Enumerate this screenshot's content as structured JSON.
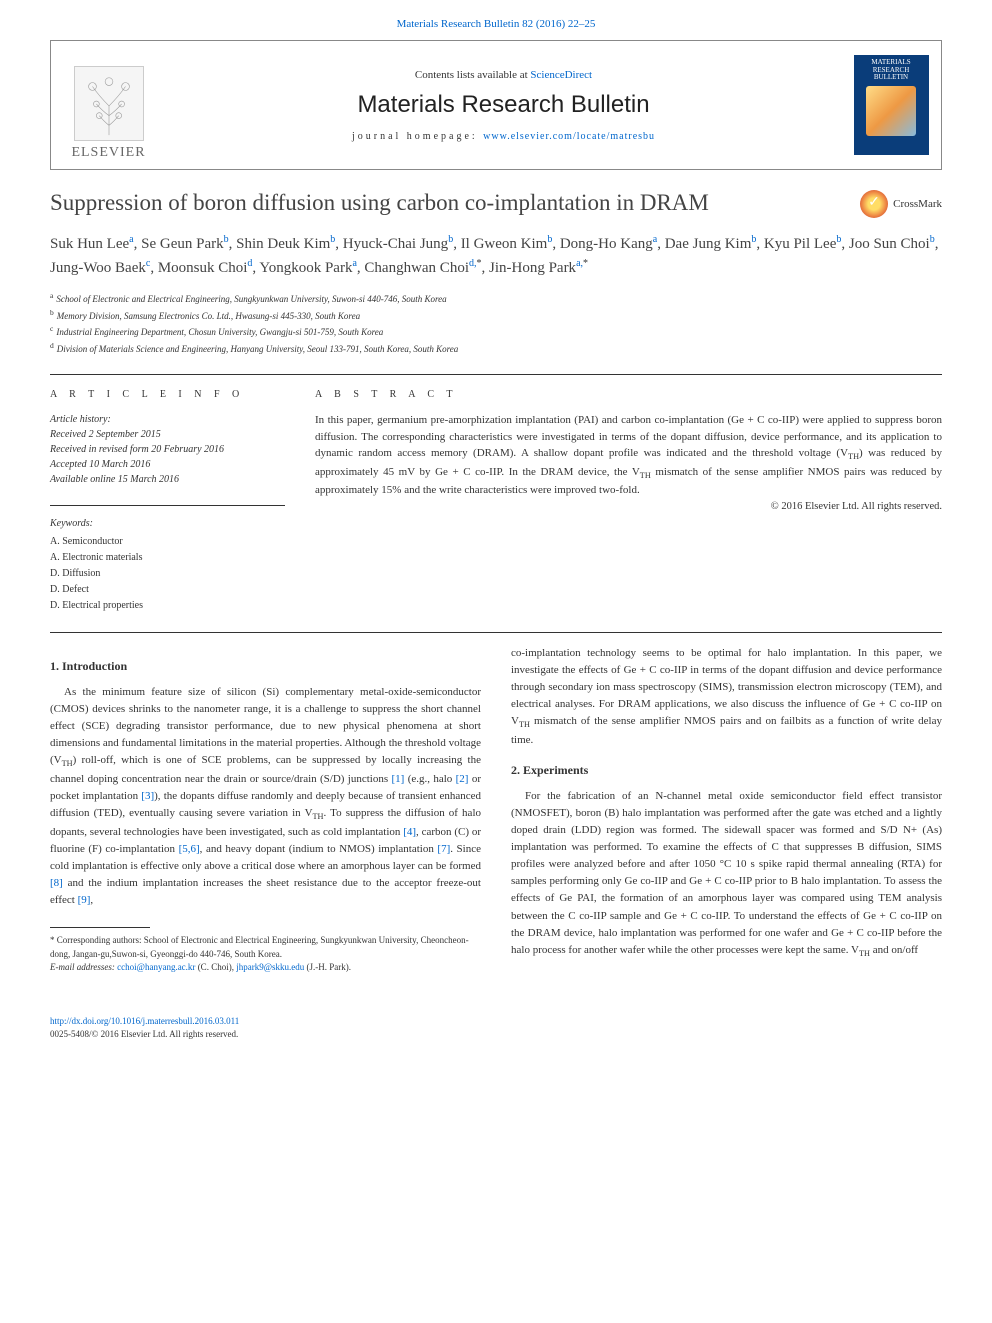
{
  "topLink": {
    "journalCitation": "Materials Research Bulletin 82 (2016) 22–25"
  },
  "headerBox": {
    "publisherName": "ELSEVIER",
    "contentsPrefix": "Contents lists available at ",
    "contentsLinkText": "ScienceDirect",
    "journalName": "Materials Research Bulletin",
    "homepagePrefix": "journal homepage: ",
    "homepageUrl": "www.elsevier.com/locate/matresbu",
    "coverTitle": "MATERIALS RESEARCH BULLETIN"
  },
  "crossmark": {
    "label": "CrossMark"
  },
  "title": "Suppression of boron diffusion using carbon co-implantation in DRAM",
  "authors": [
    {
      "name": "Suk Hun Lee",
      "aff": "a"
    },
    {
      "name": "Se Geun Park",
      "aff": "b"
    },
    {
      "name": "Shin Deuk Kim",
      "aff": "b"
    },
    {
      "name": "Hyuck-Chai Jung",
      "aff": "b"
    },
    {
      "name": "Il Gweon Kim",
      "aff": "b"
    },
    {
      "name": "Dong-Ho Kang",
      "aff": "a"
    },
    {
      "name": "Dae Jung Kim",
      "aff": "b"
    },
    {
      "name": "Kyu Pil Lee",
      "aff": "b"
    },
    {
      "name": "Joo Sun Choi",
      "aff": "b"
    },
    {
      "name": "Jung-Woo Baek",
      "aff": "c"
    },
    {
      "name": "Moonsuk Choi",
      "aff": "d"
    },
    {
      "name": "Yongkook Park",
      "aff": "a"
    },
    {
      "name": "Changhwan Choi",
      "aff": "d",
      "corr": true
    },
    {
      "name": "Jin-Hong Park",
      "aff": "a",
      "corr": true
    }
  ],
  "affiliations": [
    {
      "key": "a",
      "text": "School of Electronic and Electrical Engineering, Sungkyunkwan University, Suwon-si 440-746, South Korea"
    },
    {
      "key": "b",
      "text": "Memory Division, Samsung Electronics Co. Ltd., Hwasung-si 445-330, South Korea"
    },
    {
      "key": "c",
      "text": "Industrial Engineering Department, Chosun University, Gwangju-si 501-759, South Korea"
    },
    {
      "key": "d",
      "text": "Division of Materials Science and Engineering, Hanyang University, Seoul 133-791, South Korea, South Korea"
    }
  ],
  "sectionLabels": {
    "articleInfo": "A R T I C L E  I N F O",
    "abstract": "A B S T R A C T"
  },
  "history": {
    "label": "Article history:",
    "received": "Received 2 September 2015",
    "revised": "Received in revised form 20 February 2016",
    "accepted": "Accepted 10 March 2016",
    "online": "Available online 15 March 2016"
  },
  "keywords": {
    "label": "Keywords:",
    "items": [
      "A. Semiconductor",
      "A. Electronic materials",
      "D. Diffusion",
      "D. Defect",
      "D. Electrical properties"
    ]
  },
  "abstract": {
    "text": "In this paper, germanium pre-amorphization implantation (PAI) and carbon co-implantation (Ge + C co-IIP) were applied to suppress boron diffusion. The corresponding characteristics were investigated in terms of the dopant diffusion, device performance, and its application to dynamic random access memory (DRAM). A shallow dopant profile was indicated and the threshold voltage (V_TH) was reduced by approximately 45 mV by Ge + C co-IIP. In the DRAM device, the V_TH mismatch of the sense amplifier NMOS pairs was reduced by approximately 15% and the write characteristics were improved two-fold.",
    "copyright": "© 2016 Elsevier Ltd. All rights reserved."
  },
  "body": {
    "intro": {
      "heading": "1. Introduction",
      "p1a": "As the minimum feature size of silicon (Si) complementary metal-oxide-semiconductor (CMOS) devices shrinks to the nanometer range, it is a challenge to suppress the short channel effect (SCE) degrading transistor performance, due to new physical phenomena at short dimensions and fundamental limitations in the material properties. Although the threshold voltage (V",
      "p1b": ") roll-off, which is one of SCE problems, can be suppressed by locally increasing the channel doping concentration near the drain or source/drain (S/D) junctions ",
      "p1c": " (e.g., halo ",
      "p1d": " or pocket implantation ",
      "p1e": "), the dopants diffuse randomly and deeply because of transient enhanced diffusion (TED), eventually causing severe variation in V",
      "p1f": ". To suppress the diffusion of halo dopants, several technologies have been investigated, such as cold implantation ",
      "p1g": ", carbon (C) or fluorine (F) co-implantation ",
      "p1h": ", and heavy dopant (indium to NMOS) implantation ",
      "p1i": ". Since cold implantation is effective only above a critical dose where an amorphous layer can be formed ",
      "p1j": " and the indium implantation increases the sheet resistance due to the acceptor freeze-out effect ",
      "p1k": ",",
      "p2a": "co-implantation technology seems to be optimal for halo implantation. In this paper, we investigate the effects of Ge + C co-IIP in terms of the dopant diffusion and device performance through secondary ion mass spectroscopy (SIMS), transmission electron microscopy (TEM), and electrical analyses. For DRAM applications, we also discuss the influence of Ge + C co-IIP on V",
      "p2b": " mismatch of the sense amplifier NMOS pairs and on failbits as a function of write delay time."
    },
    "experiments": {
      "heading": "2. Experiments",
      "p1a": "For the fabrication of an N-channel metal oxide semiconductor field effect transistor (NMOSFET), boron (B) halo implantation was performed after the gate was etched and a lightly doped drain (LDD) region was formed. The sidewall spacer was formed and S/D N+ (As) implantation was performed. To examine the effects of C that suppresses B diffusion, SIMS profiles were analyzed before and after 1050 °C 10 s spike rapid thermal annealing (RTA) for samples performing only Ge co-IIP and Ge + C co-IIP prior to B halo implantation. To assess the effects of Ge PAI, the formation of an amorphous layer was compared using TEM analysis between the C co-IIP sample and Ge + C co-IIP. To understand the effects of Ge + C co-IIP on the DRAM device, halo implantation was performed for one wafer and Ge + C co-IIP before the halo process for another wafer while the other processes were kept the same. V",
      "p1b": " and on/off"
    },
    "refs": {
      "r1": "[1]",
      "r2": "[2]",
      "r3": "[3]",
      "r4": "[4]",
      "r56": "[5,6]",
      "r7": "[7]",
      "r8": "[8]",
      "r9": "[9]"
    },
    "sub_th": "TH"
  },
  "footnotes": {
    "corrText": "* Corresponding authors: School of Electronic and Electrical Engineering, Sungkyunkwan University, Cheoncheon-dong, Jangan-gu,Suwon-si, Gyeonggi-do 440-746, South Korea.",
    "emailLabel": "E-mail addresses: ",
    "email1": "cchoi@hanyang.ac.kr",
    "email1who": " (C. Choi), ",
    "email2": "jhpark9@skku.edu",
    "email2who": " (J.-H. Park)."
  },
  "bottom": {
    "doi": "http://dx.doi.org/10.1016/j.materresbull.2016.03.011",
    "issn": "0025-5408/© 2016 Elsevier Ltd. All rights reserved."
  },
  "colors": {
    "link": "#0066cc",
    "text": "#333333",
    "coverBg": "#0a3d7a"
  }
}
